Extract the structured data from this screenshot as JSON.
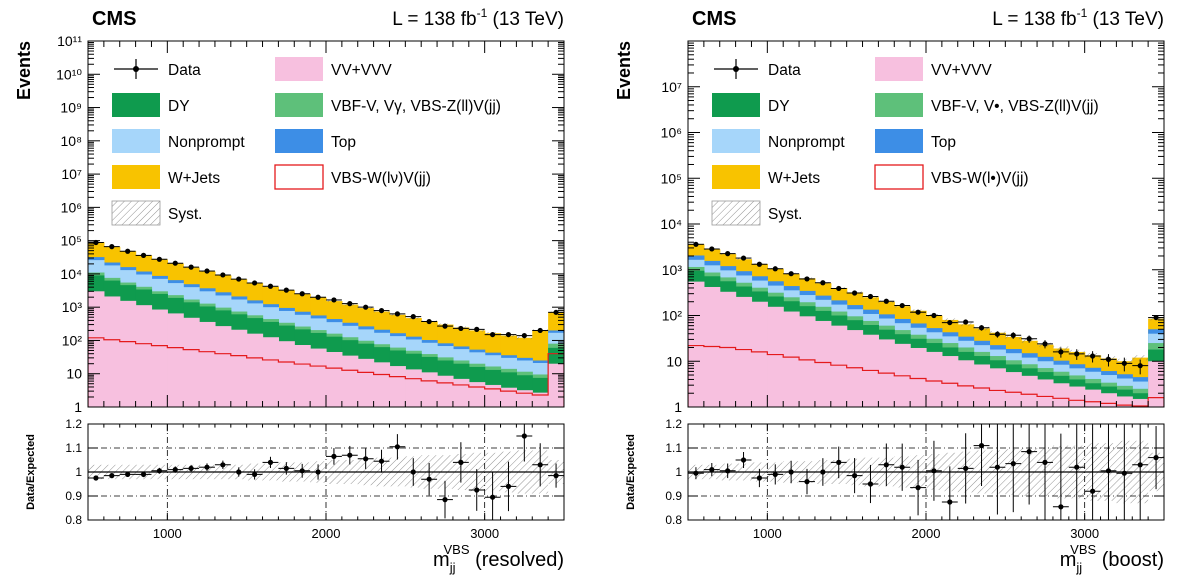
{
  "chart_data": [
    {
      "type": "bar",
      "stacked": true,
      "log_scale_top": true,
      "experiment": "CMS",
      "lumi": "L = 138 fb",
      "lumi_sup": "-1",
      "energy": "(13 TeV)",
      "ylabel": "Events",
      "ratio_ylabel": "Data/Expected",
      "xlabel_main": "m",
      "xlabel_sub": "jj",
      "xlabel_sup": "VBS",
      "xlabel_suffix": "(resolved)",
      "xlim": [
        500,
        3500
      ],
      "ylim": [
        1,
        100000000000
      ],
      "ratio_ylim": [
        0.8,
        1.2
      ],
      "y_ticks": [
        "1",
        "10",
        "10²",
        "10³",
        "10⁴",
        "10⁵",
        "10⁶",
        "10⁷",
        "10⁸",
        "10⁹",
        "10¹⁰",
        "10¹¹"
      ],
      "ratio_ticks": [
        "0.8",
        "0.9",
        "1",
        "1.1",
        "1.2"
      ],
      "x_ticks": [
        "1000",
        "2000",
        "3000"
      ],
      "legend": [
        {
          "label": "Data",
          "style": "data"
        },
        {
          "label": "VV+VVV",
          "style": "fill",
          "color": "#f7c0df"
        },
        {
          "label": "DY",
          "style": "fill",
          "color": "#0f9b4e"
        },
        {
          "label": "VBF-V, Vγ, VBS-Z(ll)V(jj)",
          "style": "fill",
          "color": "#5ec07a"
        },
        {
          "label": "Nonprompt",
          "style": "fill",
          "color": "#a6d6fa"
        },
        {
          "label": "Top",
          "style": "fill",
          "color": "#3d8ee6"
        },
        {
          "label": "W+Jets",
          "style": "fill",
          "color": "#f8c300"
        },
        {
          "label": "VBS-W(lν)V(jj)",
          "style": "line",
          "color": "#e41a1c"
        },
        {
          "label": "Syst.",
          "style": "hatch"
        }
      ],
      "bin_edges": [
        500,
        600,
        700,
        800,
        900,
        1000,
        1100,
        1200,
        1300,
        1400,
        1500,
        1600,
        1700,
        1800,
        1900,
        2000,
        2100,
        2200,
        2300,
        2400,
        2500,
        2600,
        2700,
        2800,
        2900,
        3000,
        3100,
        3200,
        3300,
        3400,
        3500
      ],
      "stack_tops": {
        "VV+VVV": [
          3000,
          2100,
          1550,
          1150,
          850,
          650,
          480,
          360,
          270,
          210,
          160,
          125,
          95,
          73,
          57,
          45,
          35,
          28,
          22,
          17,
          13.5,
          11,
          8.7,
          7,
          5.6,
          4.6,
          3.8,
          3.2,
          2.7,
          20
        ],
        "DY": [
          9000,
          6300,
          4600,
          3400,
          2500,
          1900,
          1400,
          1050,
          800,
          610,
          470,
          360,
          280,
          215,
          168,
          130,
          102,
          80,
          63,
          50,
          40,
          32,
          25,
          20,
          16,
          13,
          11,
          9,
          7.5,
          60
        ],
        "VBF-V, Vγ, VBS-Z(ll)V(jj)": [
          11000,
          7600,
          5500,
          4100,
          3000,
          2300,
          1700,
          1280,
          970,
          740,
          570,
          440,
          340,
          262,
          205,
          160,
          125,
          98,
          77,
          61,
          49,
          39,
          31,
          25,
          20,
          16.5,
          14,
          11.5,
          9.5,
          80
        ],
        "Nonprompt": [
          26000,
          18000,
          13000,
          9600,
          7100,
          5300,
          4000,
          3000,
          2250,
          1700,
          1300,
          1000,
          770,
          590,
          460,
          355,
          275,
          215,
          170,
          135,
          107,
          85,
          68,
          55,
          44,
          36,
          30,
          25,
          21,
          170
        ],
        "Top": [
          32000,
          22000,
          16000,
          11800,
          8700,
          6500,
          4900,
          3700,
          2800,
          2100,
          1600,
          1230,
          950,
          730,
          565,
          440,
          340,
          265,
          210,
          165,
          130,
          103,
          82,
          66,
          53,
          43,
          36,
          30,
          25,
          200
        ],
        "W+Jets": [
          90000,
          65000,
          48000,
          36000,
          27000,
          20500,
          15500,
          11800,
          9000,
          6900,
          5300,
          4100,
          3200,
          2500,
          1950,
          1520,
          1190,
          940,
          740,
          590,
          470,
          375,
          300,
          245,
          200,
          165,
          140,
          120,
          200,
          700
        ]
      },
      "signal": [
        120,
        105,
        92,
        80,
        70,
        61,
        53,
        46,
        40,
        35,
        30,
        26,
        22.5,
        19.5,
        17,
        14.7,
        12.7,
        11,
        9.5,
        8.2,
        7.1,
        6.1,
        5.3,
        4.6,
        4,
        3.5,
        3,
        2.6,
        2.3,
        40
      ],
      "data": [
        88000,
        66000,
        48000,
        36000,
        27500,
        21000,
        16000,
        12200,
        9300,
        7000,
        5350,
        4250,
        3250,
        2530,
        1990,
        1650,
        1280,
        1000,
        790,
        630,
        520,
        370,
        270,
        230,
        215,
        150,
        150,
        140,
        200,
        700
      ],
      "ratio": [
        0.975,
        0.985,
        0.99,
        0.99,
        1.005,
        1.01,
        1.015,
        1.02,
        1.03,
        1.0,
        0.99,
        1.04,
        1.015,
        1.005,
        1.0,
        1.065,
        1.07,
        1.055,
        1.045,
        1.105,
        1.0,
        0.97,
        0.885,
        1.04,
        0.925,
        0.895,
        0.94,
        1.15,
        1.03,
        0.985
      ],
      "syst_ratio": [
        0.03,
        0.03,
        0.03,
        0.03,
        0.03,
        0.03,
        0.03,
        0.03,
        0.03,
        0.03,
        0.035,
        0.035,
        0.04,
        0.04,
        0.045,
        0.05,
        0.05,
        0.055,
        0.06,
        0.06,
        0.065,
        0.07,
        0.07,
        0.075,
        0.08,
        0.08,
        0.085,
        0.09,
        0.09,
        0.05
      ]
    },
    {
      "type": "bar",
      "stacked": true,
      "log_scale_top": true,
      "experiment": "CMS",
      "lumi": "L = 138 fb",
      "lumi_sup": "-1",
      "energy": "(13 TeV)",
      "ylabel": "Events",
      "ratio_ylabel": "Data/Expected",
      "xlabel_main": "m",
      "xlabel_sub": "jj",
      "xlabel_sup": "VBS",
      "xlabel_suffix": "(boost)",
      "xlim": [
        500,
        3500
      ],
      "ylim": [
        1,
        100000000
      ],
      "ratio_ylim": [
        0.8,
        1.2
      ],
      "y_ticks": [
        "1",
        "10",
        "10²",
        "10³",
        "10⁴",
        "10⁵",
        "10⁶",
        "10⁷"
      ],
      "ratio_ticks": [
        "0.8",
        "0.9",
        "1",
        "1.1",
        "1.2"
      ],
      "x_ticks": [
        "1000",
        "2000",
        "3000"
      ],
      "legend": [
        {
          "label": "Data",
          "style": "data"
        },
        {
          "label": "VV+VVV",
          "style": "fill",
          "color": "#f7c0df"
        },
        {
          "label": "DY",
          "style": "fill",
          "color": "#0f9b4e"
        },
        {
          "label": "VBF-V, V•, VBS-Z(ll)V(jj)",
          "style": "fill",
          "color": "#5ec07a"
        },
        {
          "label": "Nonprompt",
          "style": "fill",
          "color": "#a6d6fa"
        },
        {
          "label": "Top",
          "style": "fill",
          "color": "#3d8ee6"
        },
        {
          "label": "W+Jets",
          "style": "fill",
          "color": "#f8c300"
        },
        {
          "label": "VBS-W(l•)V(jj)",
          "style": "line",
          "color": "#e41a1c"
        },
        {
          "label": "Syst.",
          "style": "hatch"
        }
      ],
      "bin_edges": [
        500,
        600,
        700,
        800,
        900,
        1000,
        1100,
        1200,
        1300,
        1400,
        1500,
        1600,
        1700,
        1800,
        1900,
        2000,
        2100,
        2200,
        2300,
        2400,
        2500,
        2600,
        2700,
        2800,
        2900,
        3000,
        3100,
        3200,
        3300,
        3400,
        3500
      ],
      "stack_tops": {
        "VV+VVV": [
          550,
          420,
          330,
          255,
          200,
          155,
          122,
          96,
          76,
          60,
          48,
          38,
          30,
          24,
          19.5,
          16,
          13,
          10.5,
          8.5,
          7,
          5.8,
          4.8,
          4,
          3.3,
          2.8,
          2.4,
          2,
          1.7,
          1.5,
          10
        ],
        "DY": [
          950,
          720,
          560,
          430,
          335,
          260,
          205,
          160,
          126,
          100,
          79,
          62,
          49,
          39,
          31,
          25,
          20,
          16,
          13,
          10.5,
          8.5,
          7,
          5.8,
          4.8,
          4,
          3.3,
          2.8,
          2.4,
          2,
          18
        ],
        "VBF-V, Vγ, VBS-Z(ll)V(jj)": [
          1150,
          870,
          680,
          520,
          405,
          315,
          250,
          195,
          155,
          122,
          96,
          76,
          60,
          48,
          38,
          31,
          25,
          20,
          16,
          13,
          10.5,
          8.6,
          7.1,
          5.9,
          4.9,
          4.1,
          3.4,
          2.9,
          2.5,
          25
        ],
        "Nonprompt": [
          1650,
          1250,
          970,
          750,
          580,
          450,
          355,
          280,
          220,
          173,
          137,
          108,
          86,
          68,
          54,
          43,
          35,
          28,
          22.5,
          18,
          15,
          12,
          10,
          8.4,
          7,
          5.9,
          5,
          4.2,
          3.6,
          40
        ],
        "Top": [
          2050,
          1560,
          1200,
          930,
          720,
          560,
          440,
          345,
          272,
          214,
          169,
          134,
          106,
          84,
          67,
          53,
          43,
          34.5,
          28,
          22.5,
          18.5,
          15,
          12.5,
          10.3,
          8.6,
          7.2,
          6.1,
          5.2,
          4.5,
          50
        ],
        "W+Jets": [
          3600,
          2800,
          2200,
          1700,
          1330,
          1050,
          820,
          650,
          510,
          400,
          320,
          250,
          200,
          160,
          127,
          100,
          80,
          64,
          52,
          42,
          34,
          28,
          23,
          19,
          16,
          13.5,
          11.5,
          10,
          12,
          85
        ]
      },
      "signal": [
        22,
        21,
        20,
        18,
        16,
        14,
        12.3,
        10.7,
        9.4,
        8.2,
        7.2,
        6.3,
        5.5,
        4.8,
        4.2,
        3.7,
        3.3,
        2.9,
        2.6,
        2.3,
        2.1,
        1.9,
        1.7,
        1.55,
        1.4,
        1.3,
        1.2,
        1.1,
        1.05,
        1.6
      ],
      "data": [
        3600,
        2850,
        2250,
        1800,
        1320,
        1050,
        820,
        630,
        520,
        390,
        310,
        260,
        205,
        165,
        118,
        100,
        70,
        72,
        54,
        39,
        37,
        31,
        24,
        16,
        14.5,
        13,
        11,
        9,
        8,
        90
      ],
      "ratio": [
        0.995,
        1.01,
        1.005,
        1.05,
        0.975,
        0.99,
        1.0,
        0.96,
        1.0,
        1.04,
        0.985,
        0.95,
        1.03,
        1.02,
        0.935,
        1.005,
        0.875,
        1.015,
        1.11,
        1.02,
        1.035,
        1.085,
        1.04,
        0.855,
        1.02,
        0.92,
        1.005,
        0.995,
        1.03,
        1.06
      ],
      "syst_ratio": [
        0.03,
        0.03,
        0.035,
        0.035,
        0.04,
        0.04,
        0.045,
        0.045,
        0.05,
        0.05,
        0.055,
        0.06,
        0.06,
        0.065,
        0.07,
        0.075,
        0.08,
        0.085,
        0.09,
        0.09,
        0.095,
        0.1,
        0.1,
        0.11,
        0.11,
        0.12,
        0.12,
        0.13,
        0.13,
        0.08
      ]
    }
  ]
}
